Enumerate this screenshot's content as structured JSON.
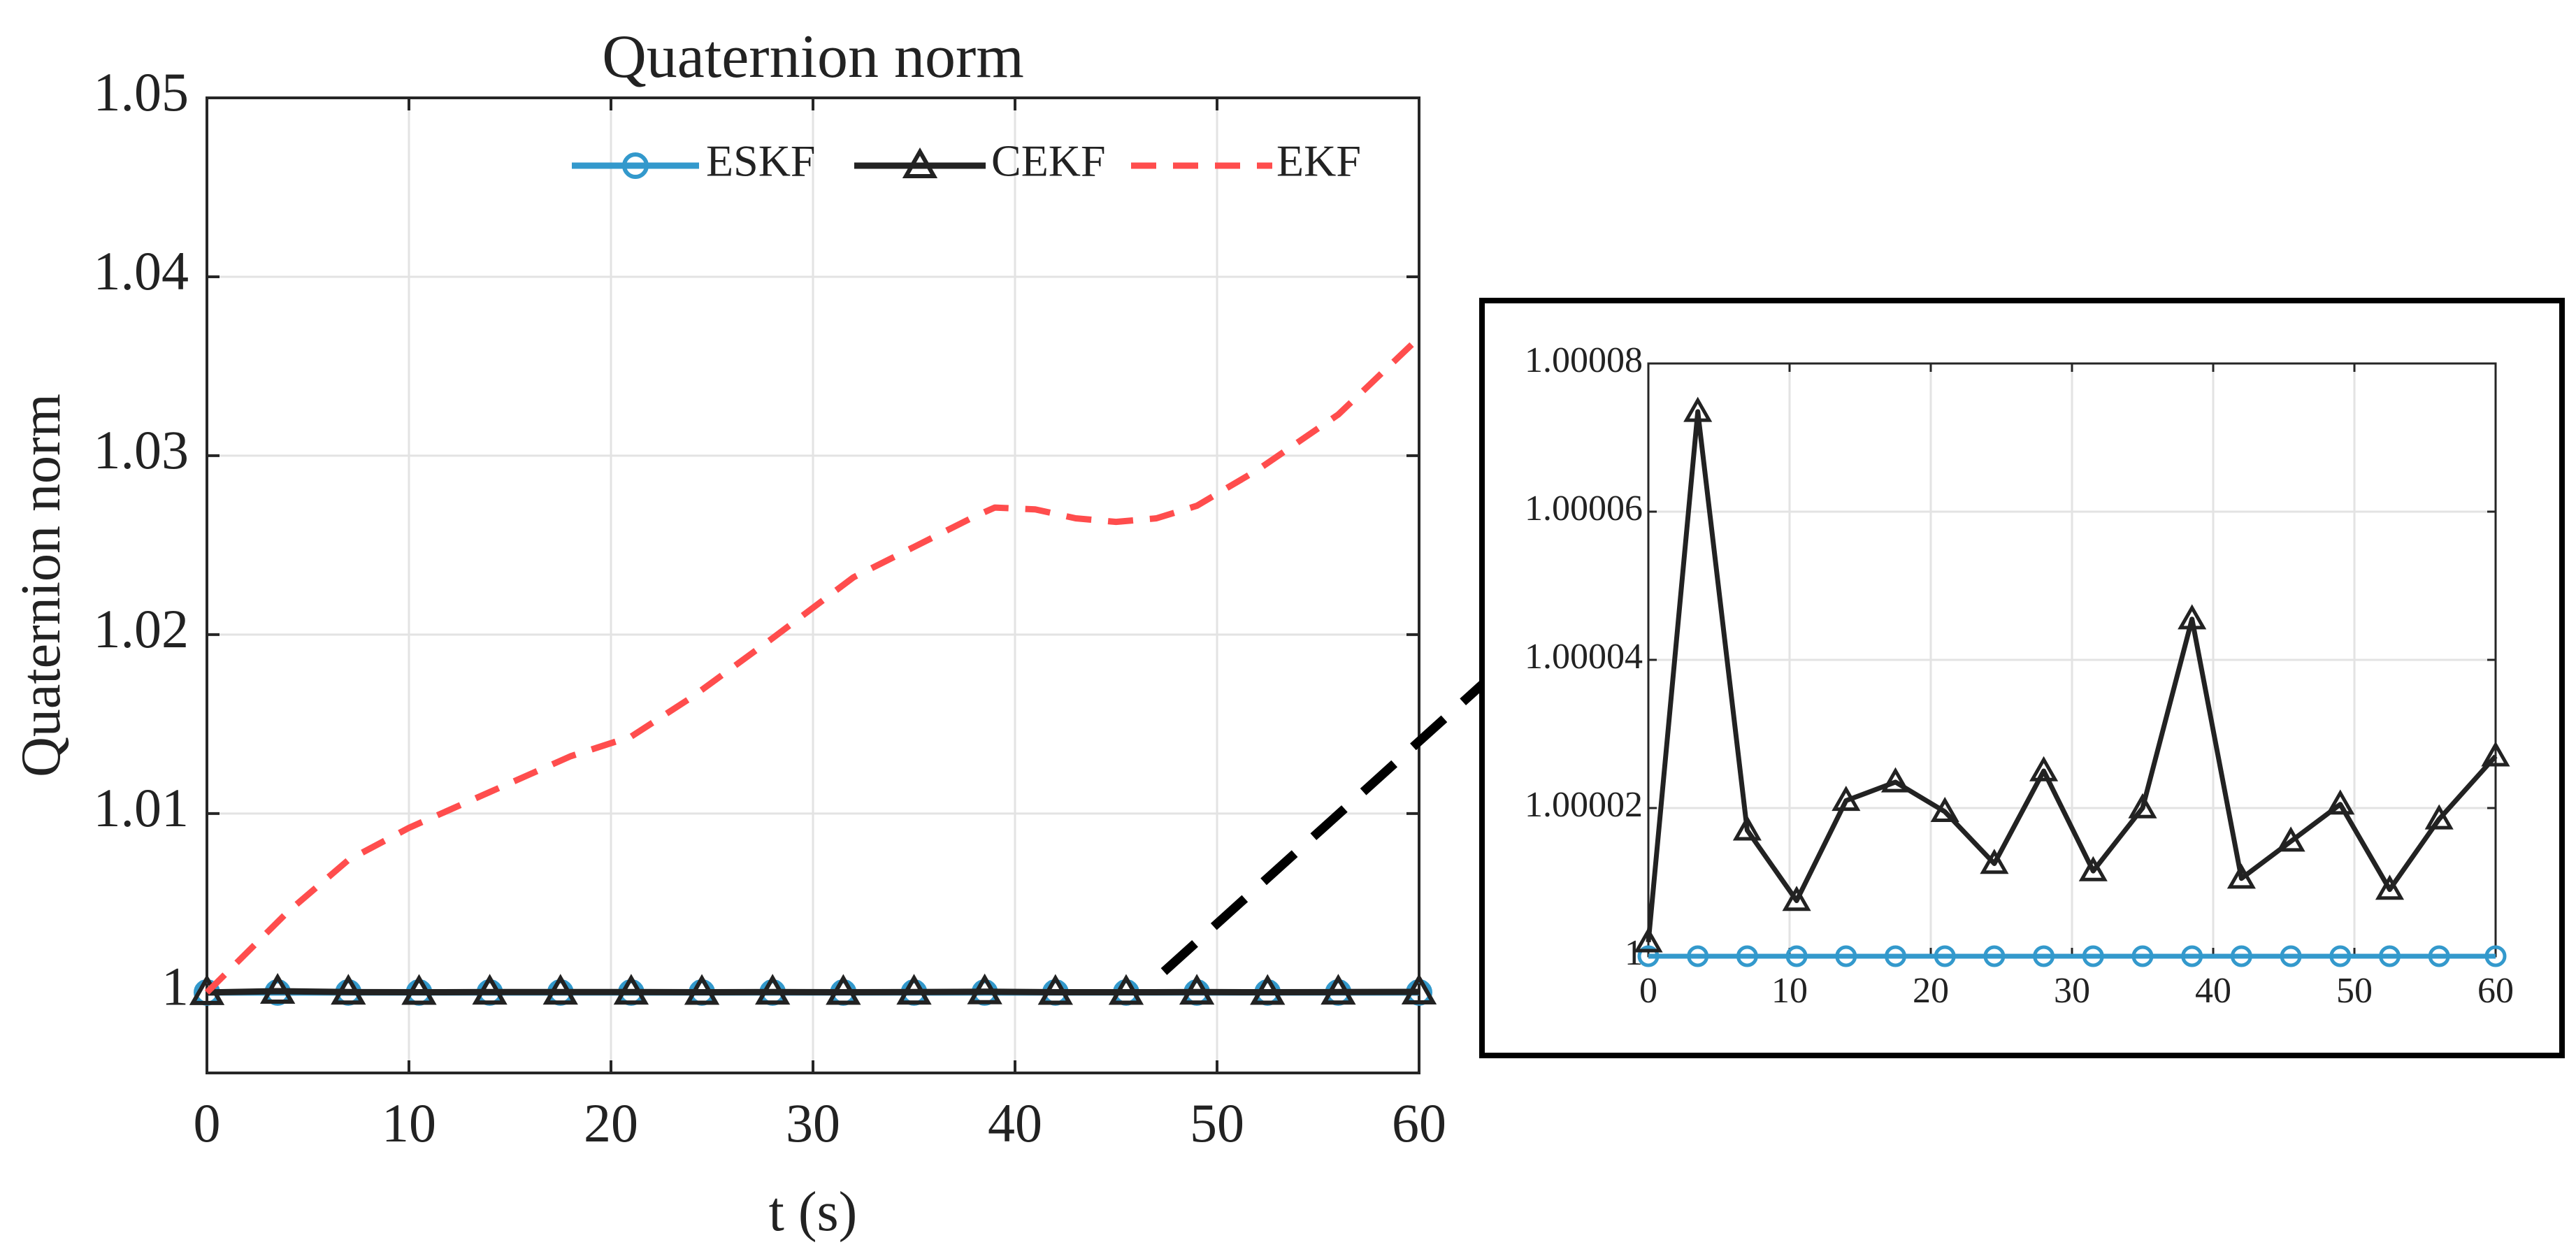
{
  "colors": {
    "eskf": "#3399cc",
    "cekf": "#222222",
    "ekf": "#ff4d4d",
    "grid": "#e3e3e3",
    "axis": "#262626",
    "connector": "#000000"
  },
  "chart_data": [
    {
      "type": "line",
      "title": "Quaternion norm",
      "xlabel": "t (s)",
      "ylabel": "Quaternion norm",
      "xlim": [
        0,
        60
      ],
      "ylim": [
        0.9955,
        1.05
      ],
      "grid": true,
      "legend_position": "top-right",
      "x_ticks": [
        0,
        10,
        20,
        30,
        40,
        50,
        60
      ],
      "x_tick_labels": [
        "0",
        "10",
        "20",
        "30",
        "40",
        "50",
        "60"
      ],
      "y_ticks": [
        1,
        1.01,
        1.02,
        1.03,
        1.04,
        1.05
      ],
      "y_tick_labels": [
        "1",
        "1.01",
        "1.02",
        "1.03",
        "1.04",
        "1.05"
      ],
      "series": [
        {
          "name": "ESKF",
          "key": "eskf",
          "marker": "circle",
          "dash": false,
          "x": [
            0,
            3.5,
            7,
            10.5,
            14,
            17.5,
            21,
            24.5,
            28,
            31.5,
            35,
            38.5,
            42,
            45.5,
            49,
            52.5,
            56,
            60
          ],
          "y": [
            1,
            1,
            1,
            1,
            1,
            1,
            1,
            1,
            1,
            1,
            1,
            1,
            1,
            1,
            1,
            1,
            1,
            1
          ]
        },
        {
          "name": "CEKF",
          "key": "cekf",
          "marker": "triangle",
          "dash": false,
          "x": [
            0,
            3.5,
            7,
            10.5,
            14,
            17.5,
            21,
            24.5,
            28,
            31.5,
            35,
            38.5,
            42,
            45.5,
            49,
            52.5,
            56,
            60
          ],
          "y": [
            1,
            1.00007,
            1.00002,
            1.00001,
            1.00002,
            1.00002,
            1.00002,
            1.00001,
            1.00002,
            1.00001,
            1.00002,
            1.00004,
            1.00001,
            1.00001,
            1.00002,
            1.00001,
            1.00002,
            1.00003
          ]
        },
        {
          "name": "EKF",
          "key": "ekf",
          "marker": "none",
          "dash": true,
          "x": [
            0,
            4,
            7,
            10,
            14,
            18,
            21,
            24,
            28,
            32,
            35,
            38,
            39,
            41,
            43,
            45,
            47,
            49,
            52,
            56,
            60
          ],
          "y": [
            1.0,
            1.0045,
            1.0074,
            1.0092,
            1.0112,
            1.0132,
            1.0143,
            1.0165,
            1.0198,
            1.0232,
            1.0249,
            1.0266,
            1.0271,
            1.027,
            1.0265,
            1.0263,
            1.0265,
            1.0272,
            1.0292,
            1.0323,
            1.0366
          ]
        }
      ]
    },
    {
      "type": "line",
      "title": "",
      "xlabel": "",
      "ylabel": "",
      "xlim": [
        0,
        60
      ],
      "ylim": [
        1,
        1.00008
      ],
      "grid": true,
      "x_ticks": [
        0,
        10,
        20,
        30,
        40,
        50,
        60
      ],
      "x_tick_labels": [
        "0",
        "10",
        "20",
        "30",
        "40",
        "50",
        "60"
      ],
      "y_ticks": [
        1,
        1.00002,
        1.00004,
        1.00006,
        1.00008
      ],
      "y_tick_labels": [
        "1",
        "1.00002",
        "1.00004",
        "1.00006",
        "1.00008"
      ],
      "series": [
        {
          "name": "ESKF",
          "key": "eskf",
          "marker": "circle",
          "dash": false,
          "x": [
            0,
            3.5,
            7,
            10.5,
            14,
            17.5,
            21,
            24.5,
            28,
            31.5,
            35,
            38.5,
            42,
            45.5,
            49,
            52.5,
            56,
            60
          ],
          "y": [
            1,
            1,
            1,
            1,
            1,
            1,
            1,
            1,
            1,
            1,
            1,
            1,
            1,
            1,
            1,
            1,
            1,
            1
          ]
        },
        {
          "name": "CEKF",
          "key": "cekf",
          "marker": "triangle",
          "dash": false,
          "x": [
            0,
            3.5,
            7,
            10.5,
            14,
            17.5,
            21,
            24.5,
            28,
            31.5,
            35,
            38.5,
            42,
            45.5,
            49,
            52.5,
            56,
            60
          ],
          "y": [
            1.0000019,
            1.0000735,
            1.000017,
            1.0000075,
            1.000021,
            1.0000235,
            1.0000195,
            1.0000125,
            1.000025,
            1.0000115,
            1.00002,
            1.0000455,
            1.0000105,
            1.0000155,
            1.0000205,
            1.000009,
            1.0000185,
            1.000027
          ]
        }
      ]
    }
  ]
}
